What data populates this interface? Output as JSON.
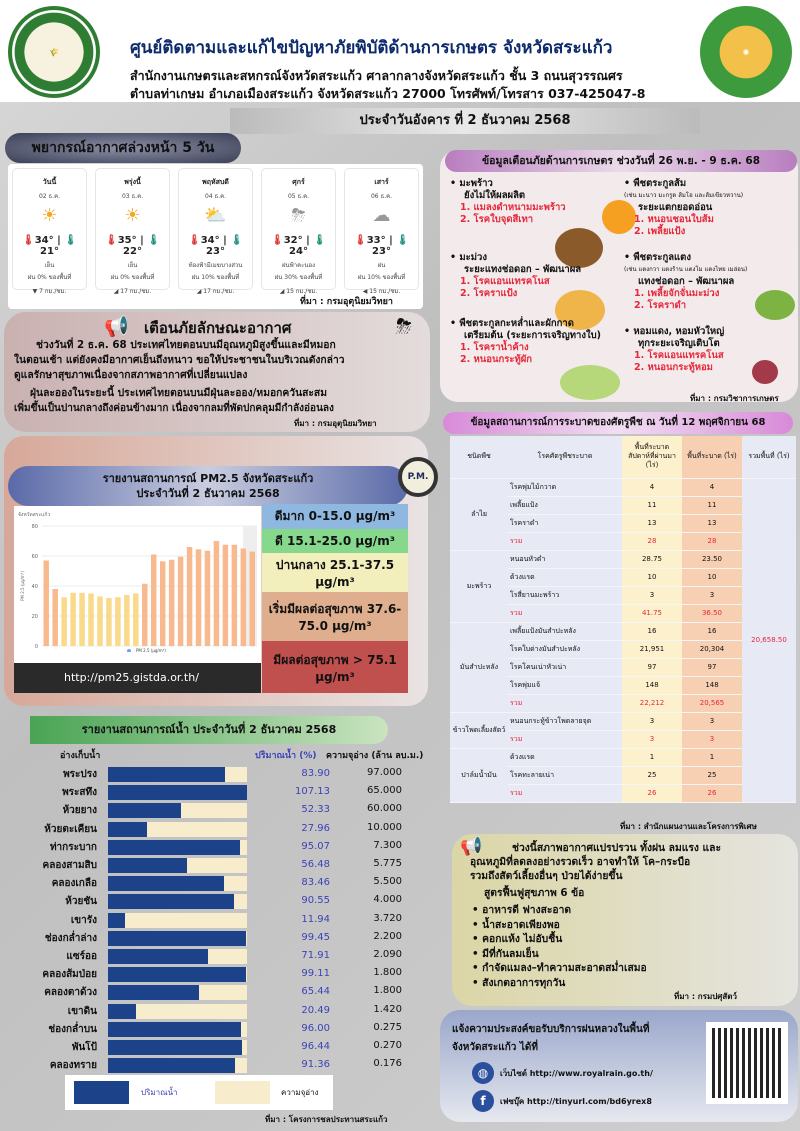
{
  "header": {
    "title": "ศูนย์ติดตามและแก้ไขปัญหาภัยพิบัติด้านการเกษตร จังหวัดสระแก้ว",
    "line2": "สำนักงานเกษตรและสหกรณ์จังหวัดสระแก้ว ศาลากลางจังหวัดสระแก้ว ชั้น 3 ถนนสุวรรณศร",
    "line3": "ตำบลท่าเกษม อำเภอเมืองสระแก้ว จังหวัดสระแก้ว 27000 โทรศัพท์/โทรสาร 037-425047-8",
    "logo_left": "MINISTRY OF AGRICULTURE AND COOPERATIVES",
    "date": "ประจำวันอังคาร ที่ 2 ธันวาคม 2568"
  },
  "forecast": {
    "title": "พยากรณ์อากาศล่วงหน้า 5 วัน",
    "source": "ที่มา : กรมอุตุนิยมวิทยา",
    "days": [
      {
        "day": "วันนี้",
        "date": "02 ธ.ค.",
        "icon": "sun-icon",
        "glyph": "☀",
        "high": "34°",
        "low": "21°",
        "cond": "เย็น",
        "rain": "ฝน 0% ของพื้นที่",
        "wind": "▼ 7 กม./ชม."
      },
      {
        "day": "พรุ่งนี้",
        "date": "03 ธ.ค.",
        "icon": "sun-icon",
        "glyph": "☀",
        "high": "35°",
        "low": "22°",
        "cond": "เย็น",
        "rain": "ฝน 0% ของพื้นที่",
        "wind": "◢ 17 กม./ชม."
      },
      {
        "day": "พฤหัสบดี",
        "date": "04 ธ.ค.",
        "icon": "partly-cloudy-icon",
        "glyph": "⛅",
        "high": "34°",
        "low": "23°",
        "cond": "ท้องฟ้ามีเมฆบางส่วน",
        "rain": "ฝน 10% ของพื้นที่",
        "wind": "◢ 17 กม./ชม."
      },
      {
        "day": "ศุกร์",
        "date": "05 ธ.ค.",
        "icon": "thunderstorm-icon",
        "glyph": "⛈",
        "high": "32°",
        "low": "24°",
        "cond": "ฝนฟ้าคะนอง",
        "rain": "ฝน 30% ของพื้นที่",
        "wind": "◢ 15 กม./ชม."
      },
      {
        "day": "เสาร์",
        "date": "06 ธ.ค.",
        "icon": "rain-cloud-icon",
        "glyph": "☁",
        "high": "33°",
        "low": "23°",
        "cond": "ฝน",
        "rain": "ฝน 10% ของพื้นที่",
        "wind": "◀ 15 กม./ชม."
      }
    ]
  },
  "weather_warning": {
    "title": "เตือนภัยลักษณะอากาศ",
    "p1a": "ช่วงวันที่ 2 ธ.ค. 68 ประเทศไทยตอนบนมีอุณหภูมิสูงขึ้นและมีหมอก",
    "p1b": "ในตอนเช้า แต่ยังคงมีอากาศเย็นถึงหนาว ขอให้ประชาชนในบริเวณดังกล่าว",
    "p1c": "ดูแลรักษาสุขภาพเนื่องจากสภาพอากาศที่เปลี่ยนแปลง",
    "p2a": "ฝุ่นละอองในระยะนี้ ประเทศไทยตอนบนมีฝุ่นละออง/หมอกควันสะสม",
    "p2b": "เพิ่มขึ้นเป็นปานกลางถึงค่อนข้างมาก เนื่องจากลมที่พัดปกคลุมมีกำลังอ่อนลง",
    "source": "ที่มา : กรมอุตุนิยมวิทยา"
  },
  "pm25": {
    "title1": "รายงานสถานการณ์ PM2.5 จังหวัดสระแก้ว",
    "title2": "ประจำวันที่ 2 ธันวาคม 2568",
    "badge": "P.M.",
    "url": "http://pm25.gistda.or.th/",
    "levels": [
      {
        "label": "ดีมาก 0-15.0 µg/m³",
        "color": "#8fb8e0"
      },
      {
        "label": "ดี 15.1-25.0 µg/m³",
        "color": "#86d98c"
      },
      {
        "label": "ปานกลาง 25.1-37.5 µg/m³",
        "color": "#f3efbd"
      },
      {
        "label": "เริ่มมีผลต่อสุขภาพ 37.6-75.0 µg/m³",
        "color": "#deae8e"
      },
      {
        "label": "มีผลต่อสุขภาพ > 75.1 µg/m³",
        "color": "#c0504d"
      }
    ]
  },
  "chart_data": {
    "type": "bar",
    "title": "จังหวัดสระแก้ว",
    "ylabel": "PM 2.5 (µg/m³)",
    "legend": "PM 2.5 (µg/m³)",
    "ylim": [
      0,
      80
    ],
    "yticks": [
      0,
      20,
      40,
      60,
      80
    ],
    "grid": true,
    "values": [
      57,
      38,
      32.5,
      35.5,
      35.5,
      35,
      33,
      32,
      32.5,
      34,
      35,
      41.5,
      61,
      56.5,
      57.5,
      59.5,
      66,
      64.5,
      63.5,
      70,
      67.5,
      67.5,
      65,
      63
    ],
    "colors": {
      "moderate": "#f9d98a",
      "unhealthy_sensitive": "#f8b98f"
    }
  },
  "water": {
    "title": "รายงานสถานการณ์น้ำ ประจำวันที่ 2 ธันวาคม 2568",
    "col_name": "อ่างเก็บน้ำ",
    "col_pct": "ปริมาณน้ำ (%)",
    "col_cap": "ความจุอ่าง (ล้าน ลบ.ม.)",
    "legend_fill": "ปริมาณน้ำ",
    "legend_cap": "ความจุอ่าง",
    "source": "ที่มา : โครงการชลประทานสระแก้ว",
    "rows": [
      {
        "name": "พระปรง",
        "pct": "83.90",
        "cap": "97.000"
      },
      {
        "name": "พระสทึง",
        "pct": "107.13",
        "cap": "65.000"
      },
      {
        "name": "ห้วยยาง",
        "pct": "52.33",
        "cap": "60.000"
      },
      {
        "name": "ห้วยตะเคียน",
        "pct": "27.96",
        "cap": "10.000"
      },
      {
        "name": "ท่ากระบาก",
        "pct": "95.07",
        "cap": "7.300"
      },
      {
        "name": "คลองสามสิบ",
        "pct": "56.48",
        "cap": "5.775"
      },
      {
        "name": "คลองเกลือ",
        "pct": "83.46",
        "cap": "5.500"
      },
      {
        "name": "ห้วยชัน",
        "pct": "90.55",
        "cap": "4.000"
      },
      {
        "name": "เขารัง",
        "pct": "11.94",
        "cap": "3.720"
      },
      {
        "name": "ช่องกล่ำล่าง",
        "pct": "99.45",
        "cap": "2.200"
      },
      {
        "name": "แซร์ออ",
        "pct": "71.91",
        "cap": "2.090"
      },
      {
        "name": "คลองส้มป่อย",
        "pct": "99.11",
        "cap": "1.800"
      },
      {
        "name": "คลองตาด้วง",
        "pct": "65.44",
        "cap": "1.800"
      },
      {
        "name": "เขาดิน",
        "pct": "20.49",
        "cap": "1.420"
      },
      {
        "name": "ช่องกล่ำบน",
        "pct": "96.00",
        "cap": "0.275"
      },
      {
        "name": "พันโป้",
        "pct": "96.44",
        "cap": "0.270"
      },
      {
        "name": "คลองทราย",
        "pct": "91.36",
        "cap": "0.176"
      }
    ]
  },
  "agri": {
    "title": "ข้อมูลเตือนภัยด้านการเกษตร ช่วงวันที่ 26 พ.ย. - 9 ธ.ค. 68",
    "source": "ที่มา : กรมวิชาการเกษตร",
    "items": [
      {
        "crop": "• มะพร้าว",
        "note": "",
        "stage": "ยังไม่ให้ผลผลิต",
        "r1": "1. แมลงดำหนามมะพร้าว",
        "r2": "2. โรคใบจุดสีเทา"
      },
      {
        "crop": "• พืชตระกูลส้ม",
        "note": "(เช่น มะนาว มะกรูด ส้มโอ และส้มเขียวหวาน)",
        "stage": "ระยะแตกยอดอ่อน",
        "r1": "1. หนอนชอนใบส้ม",
        "r2": "2. เพลี้ยแป้ง"
      },
      {
        "crop": "• มะม่วง",
        "note": "",
        "stage": "ระยะแทงช่อดอก – พัฒนาผล",
        "r1": "1. โรคแอนแทรคโนส",
        "r2": "2. โรคราแป้ง"
      },
      {
        "crop": "• พืชตระกูลแตง",
        "note": "(เช่น แตงกวา แตงร้าน แตงโม แตงไทย เมล่อน)",
        "stage": "แทงช่อดอก – พัฒนาผล",
        "r1": "1. เพลี้ยจักจั่นมะม่วง",
        "r2": "2. โรคราดำ"
      },
      {
        "crop": "• พืชตระกูลกะหล่ำและผักกาด",
        "note": "",
        "stage": "เตรียมต้น (ระยะการเจริญทางใบ)",
        "r1": "1. โรคราน้ำค้าง",
        "r2": "2. หนอนกระทู้ผัก"
      },
      {
        "crop": "• หอมแดง, หอมหัวใหญ่",
        "note": "",
        "stage": "ทุกระยะเจริญเติบโต",
        "r1": "1. โรคแอนแทรคโนส",
        "r2": "2. หนอนกระทู้หอม"
      }
    ]
  },
  "pest": {
    "title": "ข้อมูลสถานการณ์การระบาดของศัตรูพืช ณ วันที่ 12 พฤศจิกายน 68",
    "headers": [
      "ชนิดพืช",
      "โรคศัตรูพืชระบาด",
      "พื้นที่ระบาด สัปดาห์ที่ผ่านมา (ไร่)",
      "พื้นที่ระบาด (ไร่)",
      "รวมพื้นที่ (ไร่)"
    ],
    "total": "20,658.50",
    "source": "ที่มา : สำนักแผนงานและโครงการพิเศษ",
    "groups": [
      {
        "crop": "ลำไย",
        "rows": [
          [
            "โรคพุ่มไม้กวาด",
            "4",
            "4"
          ],
          [
            "เพลี้ยแป้ง",
            "11",
            "11"
          ],
          [
            "โรคราดำ",
            "13",
            "13"
          ],
          [
            "รวม",
            "28",
            "28"
          ]
        ]
      },
      {
        "crop": "มะพร้าว",
        "rows": [
          [
            "หนอนหัวดำ",
            "28.75",
            "23.50"
          ],
          [
            "ด้วงแรด",
            "10",
            "10"
          ],
          [
            "โรสี่ยานมะพร้าว",
            "3",
            "3"
          ],
          [
            "รวม",
            "41.75",
            "36.50"
          ]
        ]
      },
      {
        "crop": "มันสำปะหลัง",
        "rows": [
          [
            "เพลี้ยแป้งมันสำปะหลัง",
            "16",
            "16"
          ],
          [
            "โรคใบด่างมันสำปะหลัง",
            "21,951",
            "20,304"
          ],
          [
            "โรคโคนเน่าหัวเน่า",
            "97",
            "97"
          ],
          [
            "โรคพุ่มแจ้",
            "148",
            "148"
          ],
          [
            "รวม",
            "22,212",
            "20,565"
          ]
        ]
      },
      {
        "crop": "ข้าวโพดเลี้ยงสัตว์",
        "rows": [
          [
            "หนอนกระทู้ข้าวโพดลายจุด",
            "3",
            "3"
          ],
          [
            "รวม",
            "3",
            "3"
          ]
        ]
      },
      {
        "crop": "ปาล์มน้ำมัน",
        "rows": [
          [
            "ด้วงแรด",
            "1",
            "1"
          ],
          [
            "โรคทะลายเน่า",
            "25",
            "25"
          ],
          [
            "รวม",
            "26",
            "26"
          ]
        ]
      }
    ]
  },
  "livestock": {
    "l1": "ช่วงนี้สภาพอากาศแปรปรวน ทั้งฝน ลมแรง และ",
    "l2": "อุณหภูมิที่ลดลงอย่างรวดเร็ว อาจทำให้ โค–กระบือ",
    "l3": "รวมถึงสัตว์เลี้ยงอื่นๆ ป่วยได้ง่ายขึ้น",
    "heading": "สูตรฟื้นฟูสุขภาพ 6 ข้อ",
    "tips": [
      "อาหารดี ฟางสะอาด",
      "น้ำสะอาดเพียงพอ",
      "คอกแห้ง ไม่อับชื้น",
      "มีที่กันลมเย็น",
      "กำจัดแมลง–ทำความสะอาดสม่ำเสมอ",
      "สังเกตอาการทุกวัน"
    ],
    "source": "ที่มา : กรมปศุสัตว์"
  },
  "rain": {
    "l1": "แจ้งความประสงค์ขอรับบริการฝนหลวงในพื้นที่",
    "l2": "จังหวัดสระแก้ว ได้ที่",
    "web": "เว็บไซต์ http://www.royalrain.go.th/",
    "fb": "เฟซบุ๊ค http://tinyurl.com/bd6yrex8"
  }
}
